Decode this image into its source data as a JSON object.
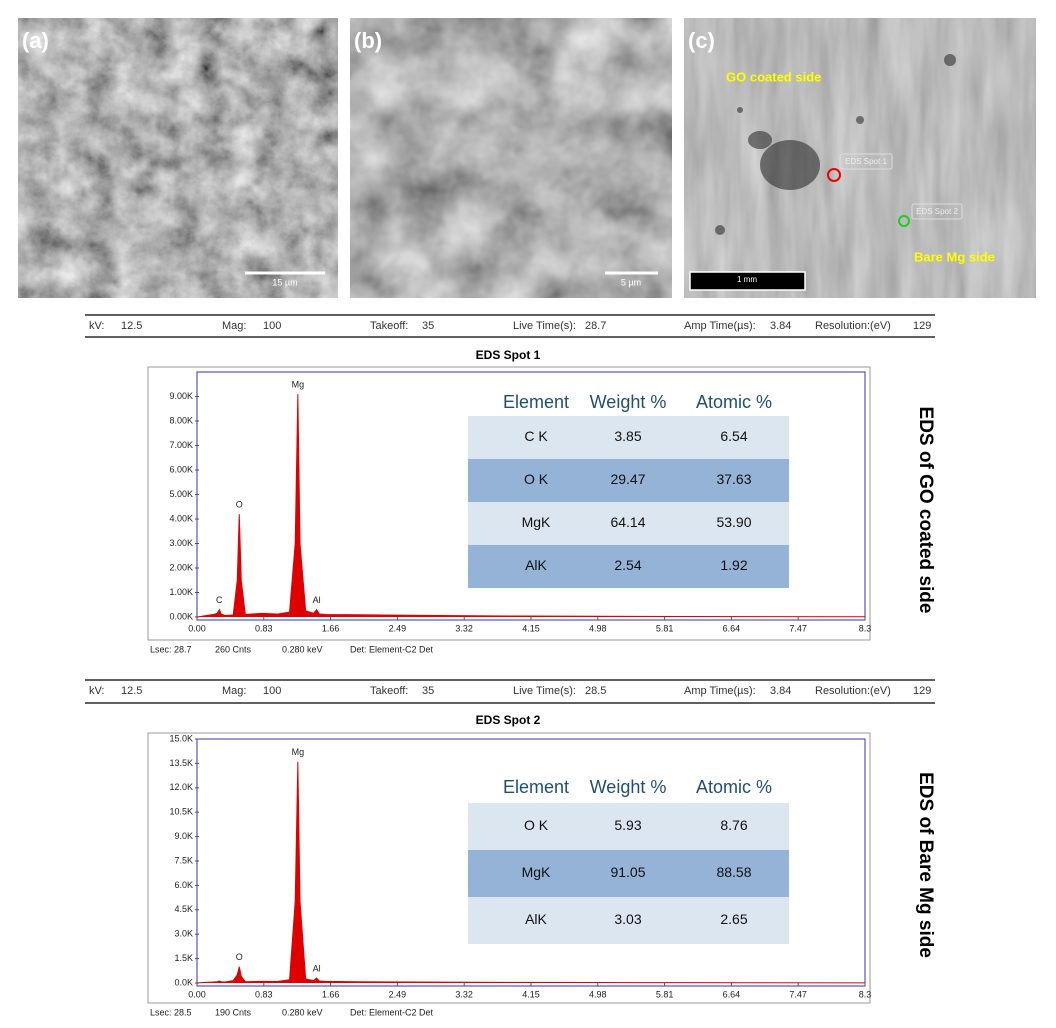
{
  "panels": [
    {
      "label": "(a)",
      "scale_bar": "15 µm"
    },
    {
      "label": "(b)",
      "scale_bar": "5 µm"
    },
    {
      "label": "(c)",
      "scale_bar": "1 mm",
      "annotations": [
        "GO coated side",
        "EDS Spot 1",
        "EDS Spot 2",
        "Bare Mg side"
      ]
    }
  ],
  "chart_data": [
    {
      "type": "area",
      "title": "EDS Spot 1",
      "color": "#e00000",
      "settings": [
        {
          "label": "kV:",
          "value": 12.5
        },
        {
          "label": "Mag:",
          "value": 100
        },
        {
          "label": "Takeoff:",
          "value": 35
        },
        {
          "label": "Live Time(s):",
          "value": 28.7
        },
        {
          "label": "Amp Time(µs):",
          "value": 3.84
        },
        {
          "label": "Resolution:(eV)",
          "value": 129
        }
      ],
      "x": [
        0,
        0.1,
        0.2,
        0.25,
        0.277,
        0.3,
        0.35,
        0.45,
        0.5,
        0.525,
        0.55,
        0.6,
        0.8,
        1.0,
        1.15,
        1.22,
        1.253,
        1.28,
        1.35,
        1.45,
        1.486,
        1.52,
        1.6,
        2.0,
        3.0,
        4.0,
        5.0,
        6.0,
        7.0,
        8.3
      ],
      "values": [
        0,
        50,
        100,
        150,
        300,
        120,
        60,
        80,
        1500,
        4200,
        1500,
        100,
        150,
        120,
        200,
        3000,
        9100,
        3000,
        250,
        150,
        300,
        120,
        100,
        90,
        60,
        40,
        30,
        20,
        15,
        10
      ],
      "xlim": [
        0,
        8.3
      ],
      "xticks": [
        {
          "value": 0,
          "label": "0.00"
        },
        0.83,
        1.66,
        2.49,
        3.32,
        4.15,
        4.98,
        5.81,
        6.64,
        7.47,
        8.3
      ],
      "ylim": [
        0,
        10000
      ],
      "yticks": [
        {
          "value": 0,
          "label": "0.00K"
        },
        {
          "value": 1000,
          "label": "1.00K"
        },
        {
          "value": 2000,
          "label": "2.00K"
        },
        {
          "value": 3000,
          "label": "3.00K"
        },
        {
          "value": 4000,
          "label": "4.00K"
        },
        {
          "value": 5000,
          "label": "5.00K"
        },
        {
          "value": 6000,
          "label": "6.00K"
        },
        {
          "value": 7000,
          "label": "7.00K"
        },
        {
          "value": 8000,
          "label": "8.00K"
        },
        {
          "value": 9000,
          "label": "9.00K"
        }
      ],
      "annotations": [
        {
          "text": "C",
          "x": 0.277
        },
        {
          "text": "O",
          "x": 0.525
        },
        {
          "text": "Mg",
          "x": 1.253
        },
        {
          "text": "Al",
          "x": 1.486
        }
      ],
      "footer": [
        "Lsec: 28.7",
        "260 Cnts",
        "0.280 keV",
        "Det: Element-C2 Det"
      ],
      "table": {
        "columns": [
          "Element",
          "Weight %",
          "Atomic %"
        ],
        "rows": [
          [
            "C K",
            "3.85",
            "6.54"
          ],
          [
            "O K",
            "29.47",
            "37.63"
          ],
          [
            "MgK",
            "64.14",
            "53.90"
          ],
          [
            "AlK",
            "2.54",
            "1.92"
          ]
        ]
      },
      "side_title": "EDS of GO coated side"
    },
    {
      "type": "area",
      "title": "EDS Spot 2",
      "color": "#e00000",
      "settings": [
        {
          "label": "kV:",
          "value": 12.5
        },
        {
          "label": "Mag:",
          "value": 100
        },
        {
          "label": "Takeoff:",
          "value": 35
        },
        {
          "label": "Live Time(s):",
          "value": 28.5
        },
        {
          "label": "Amp Time(µs):",
          "value": 3.84
        },
        {
          "label": "Resolution:(eV)",
          "value": 129
        }
      ],
      "x": [
        0,
        0.1,
        0.2,
        0.25,
        0.277,
        0.3,
        0.35,
        0.45,
        0.5,
        0.525,
        0.55,
        0.6,
        0.8,
        1.0,
        1.15,
        1.22,
        1.253,
        1.28,
        1.35,
        1.45,
        1.486,
        1.52,
        1.6,
        2.0,
        3.0,
        4.0,
        5.0,
        6.0,
        7.0,
        8.3
      ],
      "values": [
        0,
        40,
        60,
        80,
        120,
        80,
        60,
        150,
        500,
        1000,
        400,
        80,
        100,
        90,
        200,
        5000,
        13600,
        5000,
        250,
        150,
        300,
        120,
        100,
        80,
        50,
        40,
        30,
        20,
        15,
        10
      ],
      "xlim": [
        0,
        8.3
      ],
      "xticks": [
        {
          "value": 0,
          "label": "0.00"
        },
        0.83,
        1.66,
        2.49,
        3.32,
        4.15,
        4.98,
        5.81,
        6.64,
        7.47,
        8.3
      ],
      "ylim": [
        0,
        15000
      ],
      "yticks": [
        {
          "value": 0,
          "label": "0.0K"
        },
        {
          "value": 1500,
          "label": "1.5K"
        },
        {
          "value": 3000,
          "label": "3.0K"
        },
        {
          "value": 4500,
          "label": "4.5K"
        },
        {
          "value": 6000,
          "label": "6.0K"
        },
        {
          "value": 7500,
          "label": "7.5K"
        },
        {
          "value": 9000,
          "label": "9.0K"
        },
        {
          "value": 10500,
          "label": "10.5K"
        },
        {
          "value": 12000,
          "label": "12.0K"
        },
        {
          "value": 13500,
          "label": "13.5K"
        },
        {
          "value": 15000,
          "label": "15.0K"
        }
      ],
      "annotations": [
        {
          "text": "O",
          "x": 0.525
        },
        {
          "text": "Mg",
          "x": 1.253
        },
        {
          "text": "Al",
          "x": 1.486
        }
      ],
      "footer": [
        "Lsec: 28.5",
        "190 Cnts",
        "0.280 keV",
        "Det: Element-C2 Det"
      ],
      "table": {
        "columns": [
          "Element",
          "Weight %",
          "Atomic %"
        ],
        "rows": [
          [
            "O K",
            "5.93",
            "8.76"
          ],
          [
            "MgK",
            "91.05",
            "88.58"
          ],
          [
            "AlK",
            "3.03",
            "2.65"
          ]
        ]
      },
      "side_title": "EDS of Bare Mg side"
    }
  ]
}
